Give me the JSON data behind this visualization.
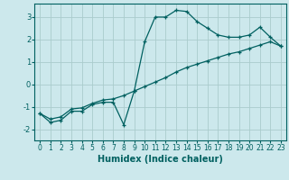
{
  "xlabel": "Humidex (Indice chaleur)",
  "ylabel": "",
  "bg_color": "#cce8ec",
  "grid_color": "#aacccc",
  "line_color": "#006060",
  "xlim": [
    -0.5,
    23.5
  ],
  "ylim": [
    -2.5,
    3.6
  ],
  "yticks": [
    -2,
    -1,
    0,
    1,
    2,
    3
  ],
  "xticks": [
    0,
    1,
    2,
    3,
    4,
    5,
    6,
    7,
    8,
    9,
    10,
    11,
    12,
    13,
    14,
    15,
    16,
    17,
    18,
    19,
    20,
    21,
    22,
    23
  ],
  "line1_x": [
    0,
    1,
    2,
    3,
    4,
    5,
    6,
    7,
    8,
    9,
    10,
    11,
    12,
    13,
    14,
    15,
    16,
    17,
    18,
    19,
    20,
    21,
    22,
    23
  ],
  "line1_y": [
    -1.3,
    -1.7,
    -1.6,
    -1.2,
    -1.2,
    -0.9,
    -0.8,
    -0.8,
    -1.8,
    -0.3,
    1.9,
    3.0,
    3.0,
    3.3,
    3.25,
    2.8,
    2.5,
    2.2,
    2.1,
    2.1,
    2.2,
    2.55,
    2.1,
    1.7
  ],
  "line2_x": [
    0,
    1,
    2,
    3,
    4,
    5,
    6,
    7,
    8,
    9,
    10,
    11,
    12,
    13,
    14,
    15,
    16,
    17,
    18,
    19,
    20,
    21,
    22,
    23
  ],
  "line2_y": [
    -1.3,
    -1.55,
    -1.45,
    -1.1,
    -1.05,
    -0.85,
    -0.7,
    -0.65,
    -0.5,
    -0.3,
    -0.1,
    0.1,
    0.3,
    0.55,
    0.75,
    0.9,
    1.05,
    1.2,
    1.35,
    1.45,
    1.6,
    1.75,
    1.9,
    1.7
  ]
}
